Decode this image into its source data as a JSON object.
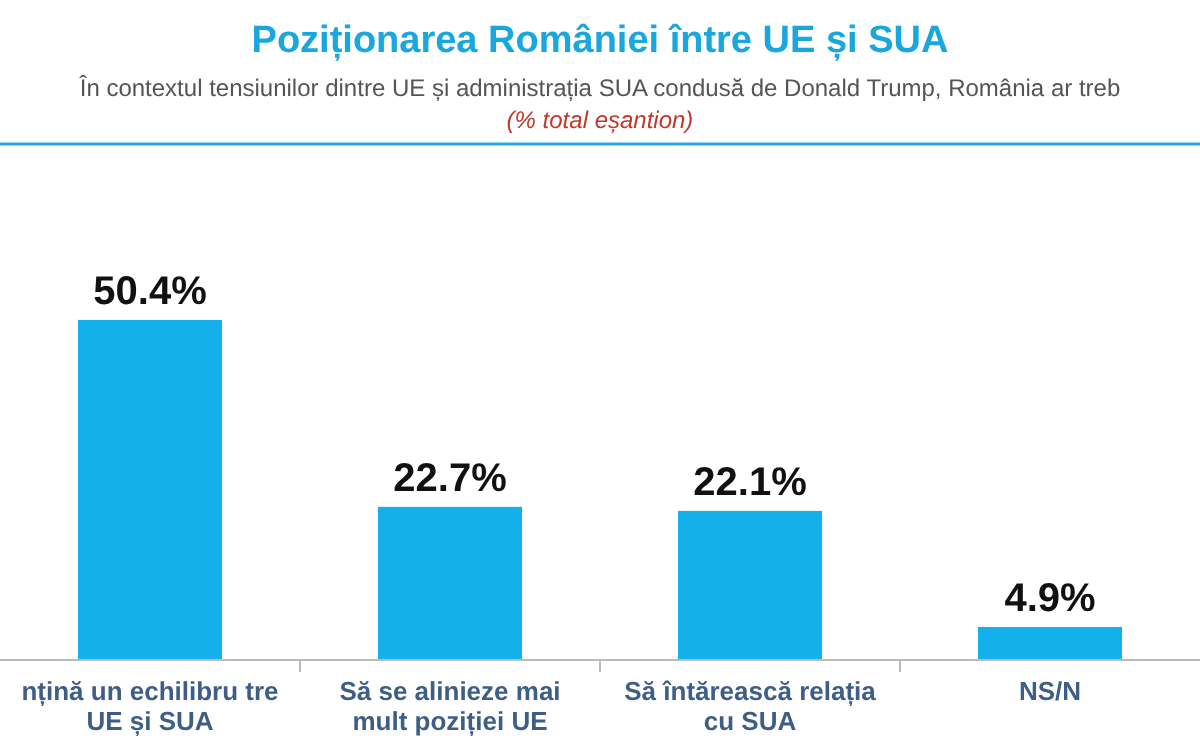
{
  "chart_data": {
    "type": "bar",
    "title": "Poziționarea României între UE și SUA",
    "subtitle": "În contextul tensiunilor dintre UE și administrația SUA condusă de Donald Trump, România ar treb",
    "annotations": [
      "(% total eșantion)"
    ],
    "categories": [
      "nțină un echilibru tre UE și SUA",
      "Să se alinieze mai mult poziției UE",
      "Să întărească relația cu SUA",
      "NS/N"
    ],
    "values": [
      50.4,
      22.7,
      22.1,
      4.9
    ],
    "value_labels": [
      "50.4%",
      "22.7%",
      "22.1%",
      "4.9%"
    ],
    "color": "#13b0ec"
  }
}
